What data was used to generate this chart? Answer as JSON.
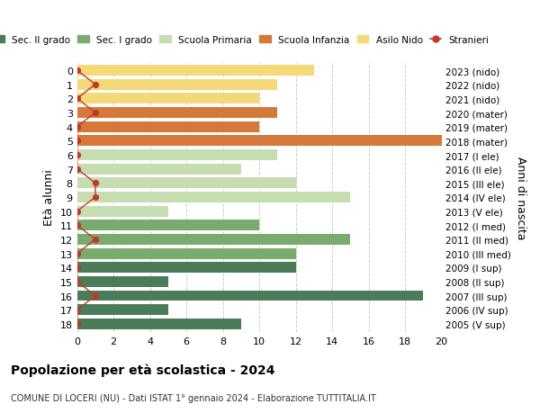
{
  "ages": [
    18,
    17,
    16,
    15,
    14,
    13,
    12,
    11,
    10,
    9,
    8,
    7,
    6,
    5,
    4,
    3,
    2,
    1,
    0
  ],
  "years_labels": [
    "2005 (V sup)",
    "2006 (IV sup)",
    "2007 (III sup)",
    "2008 (II sup)",
    "2009 (I sup)",
    "2010 (III med)",
    "2011 (II med)",
    "2012 (I med)",
    "2013 (V ele)",
    "2014 (IV ele)",
    "2015 (III ele)",
    "2016 (II ele)",
    "2017 (I ele)",
    "2018 (mater)",
    "2019 (mater)",
    "2020 (mater)",
    "2021 (nido)",
    "2022 (nido)",
    "2023 (nido)"
  ],
  "bar_values": [
    9,
    5,
    19,
    5,
    12,
    12,
    15,
    10,
    5,
    15,
    12,
    9,
    11,
    20,
    10,
    11,
    10,
    11,
    13
  ],
  "bar_colors": [
    "#4a7c59",
    "#4a7c59",
    "#4a7c59",
    "#4a7c59",
    "#4a7c59",
    "#7aab6e",
    "#7aab6e",
    "#7aab6e",
    "#c5ddb0",
    "#c5ddb0",
    "#c5ddb0",
    "#c5ddb0",
    "#c5ddb0",
    "#d4793a",
    "#d4793a",
    "#d4793a",
    "#f5d878",
    "#f5d878",
    "#f5d878"
  ],
  "stranieri_values": [
    0,
    0,
    1,
    0,
    0,
    0,
    1,
    0,
    0,
    1,
    1,
    0,
    0,
    0,
    0,
    1,
    0,
    1,
    0
  ],
  "title": "Popolazione per età scolastica - 2024",
  "subtitle": "COMUNE DI LOCERI (NU) - Dati ISTAT 1° gennaio 2024 - Elaborazione TUTTITALIA.IT",
  "ylabel": "Età alunni",
  "right_ylabel": "Anni di nascita",
  "xlim": [
    0,
    20
  ],
  "xticks": [
    0,
    2,
    4,
    6,
    8,
    10,
    12,
    14,
    16,
    18,
    20
  ],
  "legend_entries": [
    {
      "label": "Sec. II grado",
      "color": "#4a7c59"
    },
    {
      "label": "Sec. I grado",
      "color": "#7aab6e"
    },
    {
      "label": "Scuola Primaria",
      "color": "#c5ddb0"
    },
    {
      "label": "Scuola Infanzia",
      "color": "#d4793a"
    },
    {
      "label": "Asilo Nido",
      "color": "#f5d878"
    },
    {
      "label": "Stranieri",
      "color": "#c0392b"
    }
  ],
  "background_color": "#ffffff",
  "grid_color": "#cccccc",
  "bar_height": 0.75
}
